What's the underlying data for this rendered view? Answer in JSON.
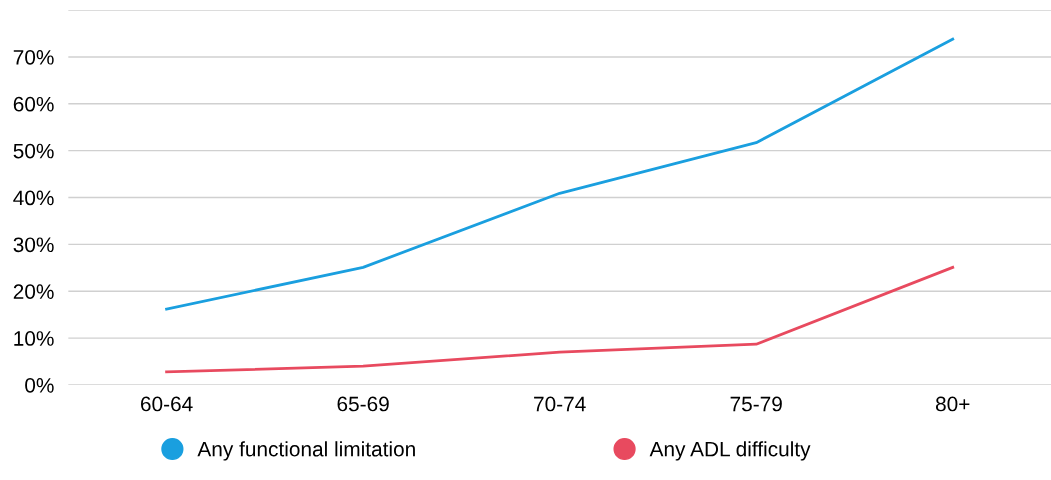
{
  "chart_data": {
    "type": "line",
    "categories": [
      "60-64",
      "65-69",
      "70-74",
      "75-79",
      "80+"
    ],
    "series": [
      {
        "name": "Any functional limitation",
        "color": "#1a9fdf",
        "values": [
          16.2,
          25.1,
          40.9,
          51.7,
          73.8
        ]
      },
      {
        "name": "Any ADL difficulty",
        "color": "#e84a5f",
        "values": [
          2.8,
          4.0,
          7.0,
          8.7,
          25.1
        ]
      }
    ],
    "ylim": [
      0,
      80
    ],
    "yticks": [
      {
        "value": 0,
        "label": "0%"
      },
      {
        "value": 10,
        "label": "10%"
      },
      {
        "value": 20,
        "label": "20%"
      },
      {
        "value": 30,
        "label": "30%"
      },
      {
        "value": 40,
        "label": "40%"
      },
      {
        "value": 50,
        "label": "50%"
      },
      {
        "value": 60,
        "label": "60%"
      },
      {
        "value": 70,
        "label": "70%"
      },
      {
        "value": 80,
        "label": null
      }
    ],
    "grid": "y",
    "legend": "bottom",
    "marker": "none",
    "line_style": "solid"
  }
}
